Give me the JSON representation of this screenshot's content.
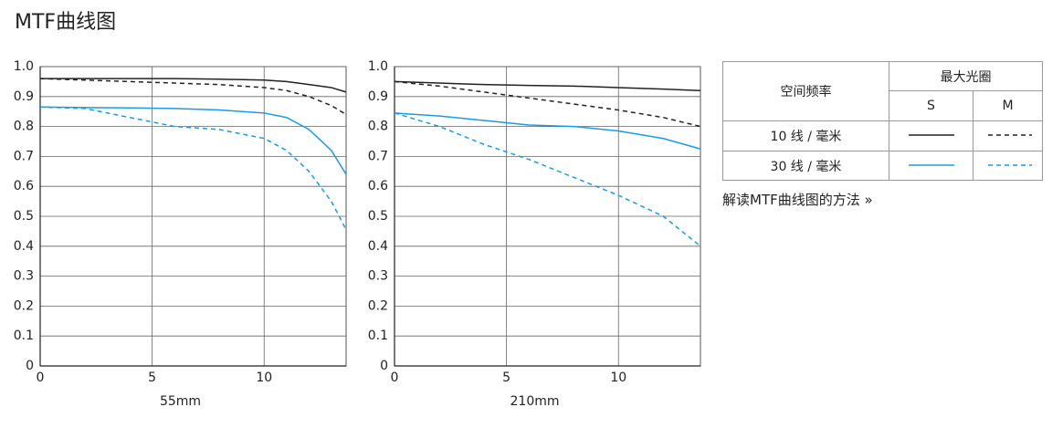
{
  "title": "MTF曲线图",
  "chart_data": [
    {
      "type": "line",
      "xlabel": "55mm",
      "xlim": [
        0,
        13.66
      ],
      "ylim": [
        0,
        1
      ],
      "xticks": [
        0,
        5,
        10
      ],
      "yticks": [
        0,
        0.1,
        0.2,
        0.3,
        0.4,
        0.5,
        0.6,
        0.7,
        0.8,
        0.9,
        {
          "value": 1,
          "label": "1.0"
        }
      ],
      "grid": true,
      "x": [
        0,
        2,
        4,
        6,
        8,
        10,
        11,
        12,
        13,
        13.66
      ],
      "series": [
        {
          "color": "#222222",
          "dashed": false,
          "values": [
            0.96,
            0.96,
            0.96,
            0.96,
            0.958,
            0.955,
            0.95,
            0.94,
            0.93,
            0.915
          ]
        },
        {
          "color": "#222222",
          "dashed": true,
          "values": [
            0.96,
            0.955,
            0.95,
            0.945,
            0.94,
            0.93,
            0.92,
            0.9,
            0.87,
            0.84
          ]
        },
        {
          "color": "#1a9be6",
          "dashed": false,
          "values": [
            0.865,
            0.863,
            0.862,
            0.86,
            0.855,
            0.845,
            0.83,
            0.79,
            0.72,
            0.64
          ]
        },
        {
          "color": "#1a9be6",
          "dashed": true,
          "values": [
            0.865,
            0.86,
            0.83,
            0.8,
            0.79,
            0.76,
            0.72,
            0.65,
            0.55,
            0.455
          ]
        }
      ]
    },
    {
      "type": "line",
      "xlabel": "210mm",
      "xlim": [
        0,
        13.66
      ],
      "ylim": [
        0,
        1
      ],
      "xticks": [
        0,
        5,
        10
      ],
      "yticks": [
        0,
        0.1,
        0.2,
        0.3,
        0.4,
        0.5,
        0.6,
        0.7,
        0.8,
        0.9,
        {
          "value": 1,
          "label": "1.0"
        }
      ],
      "grid": true,
      "x": [
        0,
        2,
        4,
        6,
        8,
        10,
        12,
        13.66
      ],
      "series": [
        {
          "color": "#222222",
          "dashed": false,
          "values": [
            0.95,
            0.945,
            0.94,
            0.937,
            0.935,
            0.93,
            0.925,
            0.92
          ]
        },
        {
          "color": "#222222",
          "dashed": true,
          "values": [
            0.95,
            0.935,
            0.915,
            0.895,
            0.875,
            0.855,
            0.83,
            0.8
          ]
        },
        {
          "color": "#1a9be6",
          "dashed": false,
          "values": [
            0.845,
            0.835,
            0.82,
            0.805,
            0.8,
            0.785,
            0.76,
            0.725
          ]
        },
        {
          "color": "#1a9be6",
          "dashed": true,
          "values": [
            0.845,
            0.8,
            0.74,
            0.69,
            0.63,
            0.57,
            0.5,
            0.4
          ]
        }
      ]
    }
  ],
  "legend_table": {
    "frequency": "空间频率",
    "aperture": "最大光圈",
    "s": "S",
    "m": "M",
    "rows": [
      "10 线 / 毫米",
      "30 线 / 毫米"
    ]
  },
  "link": "解读MTF曲线图的方法 »"
}
